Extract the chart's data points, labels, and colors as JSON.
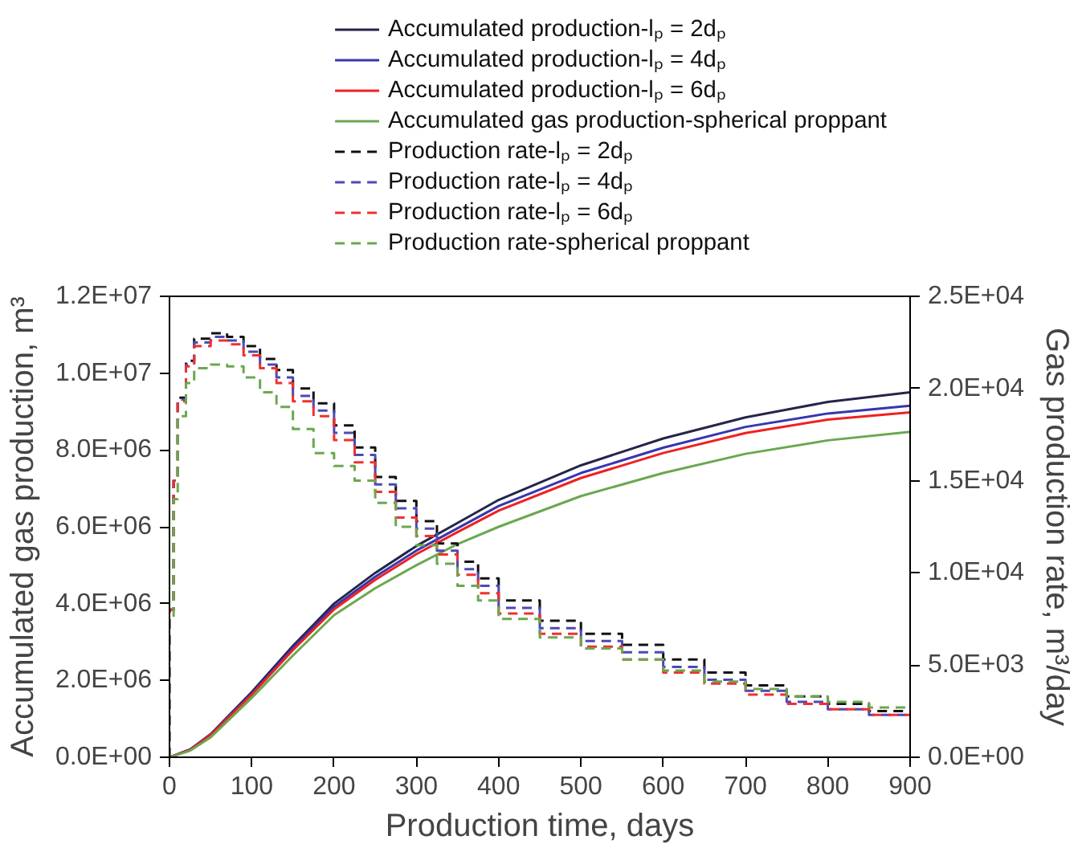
{
  "chart_data": {
    "type": "line",
    "xlabel": "Production time, days",
    "ylabel": "Accumulated gas production, m³",
    "y2label": "Gas production rate, m³/day",
    "xlim": [
      0,
      900
    ],
    "xticks": [
      0,
      100,
      200,
      300,
      400,
      500,
      600,
      700,
      800,
      900
    ],
    "ylim": [
      0,
      12000000
    ],
    "yticks": [
      {
        "value": 0,
        "label": "0.0E+00"
      },
      {
        "value": 2000000,
        "label": "2.0E+06"
      },
      {
        "value": 4000000,
        "label": "4.0E+06"
      },
      {
        "value": 6000000,
        "label": "6.0E+06"
      },
      {
        "value": 8000000,
        "label": "8.0E+06"
      },
      {
        "value": 10000000,
        "label": "1.0E+07"
      },
      {
        "value": 12000000,
        "label": "1.2E+07"
      }
    ],
    "y2lim": [
      0,
      25000
    ],
    "y2ticks": [
      {
        "value": 0,
        "label": "0.0E+00"
      },
      {
        "value": 5000,
        "label": "5.0E+03"
      },
      {
        "value": 10000,
        "label": "1.0E+04"
      },
      {
        "value": 15000,
        "label": "1.5E+04"
      },
      {
        "value": 20000,
        "label": "2.0E+04"
      },
      {
        "value": 25000,
        "label": "2.5E+04"
      }
    ],
    "grid": false,
    "legend": "top",
    "series": [
      {
        "name": "Accumulated production-lₚ = 2dₚ",
        "color": "#25254a",
        "line_style": "solid",
        "x": [
          0,
          25,
          50,
          100,
          150,
          200,
          250,
          300,
          350,
          400,
          500,
          600,
          700,
          800,
          900
        ],
        "values": [
          0,
          200000,
          600000,
          1700000,
          2900000,
          4000000,
          4800000,
          5500000,
          6100000,
          6700000,
          7600000,
          8300000,
          8850000,
          9250000,
          9500000
        ]
      },
      {
        "name": "Accumulated production-lₚ = 4dₚ",
        "color": "#3636b0",
        "line_style": "solid",
        "x": [
          0,
          25,
          50,
          100,
          150,
          200,
          250,
          300,
          350,
          400,
          500,
          600,
          700,
          800,
          900
        ],
        "values": [
          0,
          200000,
          590000,
          1660000,
          2840000,
          3920000,
          4700000,
          5380000,
          5960000,
          6540000,
          7400000,
          8060000,
          8600000,
          8950000,
          9150000
        ]
      },
      {
        "name": "Accumulated production-lₚ = 6dₚ",
        "color": "#f02020",
        "line_style": "solid",
        "x": [
          0,
          25,
          50,
          100,
          150,
          200,
          250,
          300,
          350,
          400,
          500,
          600,
          700,
          800,
          900
        ],
        "values": [
          0,
          190000,
          580000,
          1630000,
          2790000,
          3850000,
          4620000,
          5290000,
          5860000,
          6420000,
          7270000,
          7920000,
          8440000,
          8790000,
          8980000
        ]
      },
      {
        "name": "Accumulated gas production-spherical proppant",
        "color": "#6aa84f",
        "line_style": "solid",
        "x": [
          0,
          25,
          50,
          100,
          150,
          200,
          250,
          300,
          350,
          400,
          500,
          600,
          700,
          800,
          900
        ],
        "values": [
          0,
          170000,
          520000,
          1550000,
          2650000,
          3700000,
          4400000,
          5000000,
          5550000,
          6000000,
          6800000,
          7400000,
          7900000,
          8250000,
          8470000
        ]
      },
      {
        "name": "Production rate-lₚ = 2dₚ",
        "color": "#111111",
        "type": "step",
        "axis": "y2",
        "line_style": "dashed",
        "x": [
          0,
          5,
          10,
          20,
          30,
          50,
          70,
          90,
          110,
          130,
          150,
          175,
          200,
          225,
          250,
          275,
          300,
          325,
          350,
          375,
          400,
          450,
          500,
          550,
          600,
          650,
          700,
          750,
          800,
          850,
          900
        ],
        "values": [
          0,
          8000,
          15000,
          19500,
          21500,
          22700,
          23000,
          22800,
          22300,
          21600,
          21000,
          20000,
          19200,
          18000,
          16800,
          15200,
          13900,
          12800,
          11600,
          10600,
          9700,
          8500,
          7400,
          6700,
          6100,
          5300,
          4600,
          3900,
          3300,
          2900,
          2500
        ]
      },
      {
        "name": "Production rate-lₚ = 4dₚ",
        "color": "#4a4ab8",
        "type": "step",
        "axis": "y2",
        "line_style": "dashed",
        "x": [
          0,
          5,
          10,
          20,
          30,
          50,
          70,
          90,
          110,
          130,
          150,
          175,
          200,
          225,
          250,
          275,
          300,
          325,
          350,
          375,
          400,
          450,
          500,
          550,
          600,
          650,
          700,
          750,
          800,
          850,
          900
        ],
        "values": [
          0,
          8000,
          15000,
          19400,
          21300,
          22500,
          22800,
          22600,
          22000,
          21300,
          20600,
          19600,
          18800,
          17600,
          16400,
          14800,
          13500,
          12400,
          11200,
          10200,
          9300,
          8100,
          7000,
          6300,
          5700,
          4900,
          4200,
          3600,
          3000,
          2600,
          2300
        ]
      },
      {
        "name": "Production rate-lₚ = 6dₚ",
        "color": "#f03030",
        "type": "step",
        "axis": "y2",
        "line_style": "dashed",
        "x": [
          0,
          5,
          10,
          20,
          30,
          50,
          70,
          90,
          110,
          130,
          150,
          175,
          200,
          225,
          250,
          275,
          300,
          325,
          350,
          375,
          400,
          450,
          500,
          550,
          600,
          650,
          700,
          750,
          800,
          850,
          900
        ],
        "values": [
          0,
          8000,
          15000,
          19300,
          21200,
          22300,
          22600,
          22400,
          21800,
          21100,
          20300,
          19300,
          18500,
          17200,
          16000,
          14400,
          13000,
          12000,
          11000,
          9900,
          8900,
          7800,
          6700,
          6000,
          5300,
          4600,
          4000,
          3400,
          2900,
          2600,
          2300
        ]
      },
      {
        "name": "Production rate-spherical proppant",
        "color": "#6aa84f",
        "type": "step",
        "axis": "y2",
        "line_style": "dashed",
        "x": [
          0,
          5,
          10,
          20,
          30,
          50,
          70,
          90,
          110,
          130,
          150,
          175,
          200,
          225,
          250,
          275,
          300,
          325,
          350,
          375,
          400,
          450,
          500,
          550,
          600,
          650,
          700,
          750,
          800,
          850,
          900
        ],
        "values": [
          0,
          7500,
          14000,
          18500,
          20300,
          21100,
          21300,
          21200,
          20600,
          19800,
          19000,
          17800,
          16500,
          15800,
          15000,
          13800,
          12500,
          11500,
          10500,
          9300,
          8500,
          7500,
          6500,
          5900,
          5300,
          4700,
          4100,
          3700,
          3300,
          3000,
          2700
        ]
      }
    ]
  }
}
